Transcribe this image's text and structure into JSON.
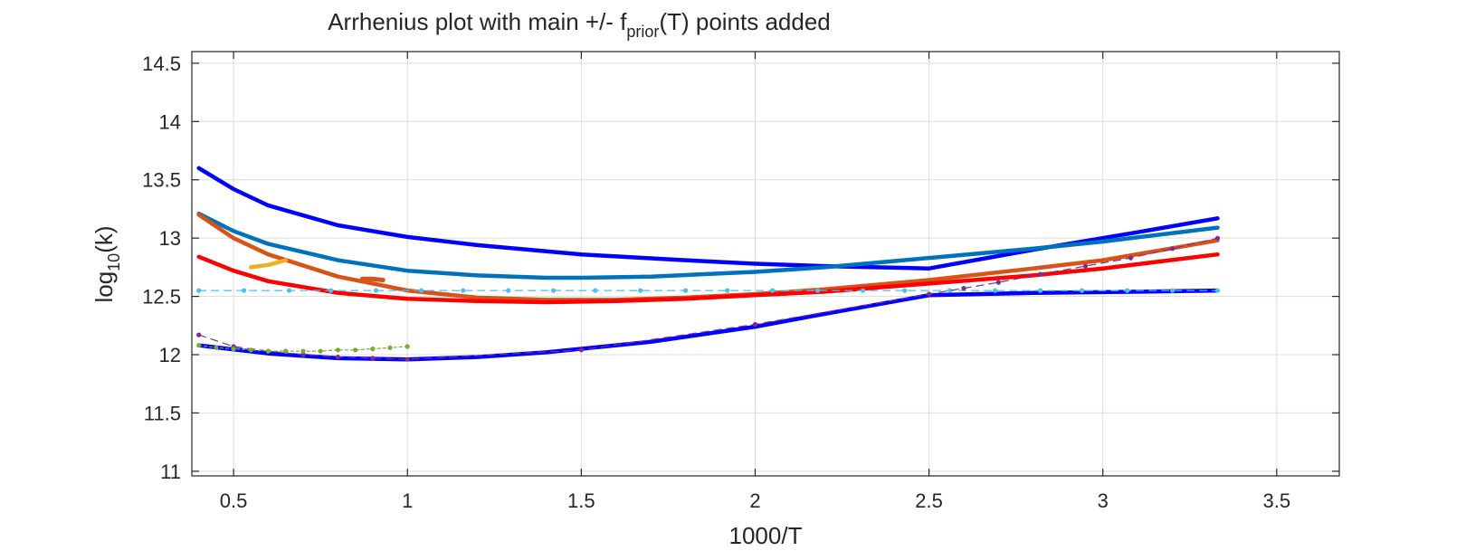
{
  "chart_data": {
    "type": "line",
    "title_parts": {
      "main": "Arrhenius plot with main +/- f",
      "subscript": "prior",
      "suffix": "(T) points added"
    },
    "xlabel": "1000/T",
    "ylabel_parts": {
      "main": "log",
      "subscript": "10",
      "suffix": "(k)"
    },
    "xlim": [
      0.38,
      3.68
    ],
    "ylim": [
      10.96,
      14.6
    ],
    "xticks": [
      0.5,
      1,
      1.5,
      2,
      2.5,
      3,
      3.5
    ],
    "xtick_labels": [
      "0.5",
      "1",
      "1.5",
      "2",
      "2.5",
      "3",
      "3.5"
    ],
    "yticks": [
      11,
      11.5,
      12,
      12.5,
      13,
      13.5,
      14,
      14.5
    ],
    "ytick_labels": [
      "11",
      "11.5",
      "12",
      "12.5",
      "13",
      "13.5",
      "14",
      "14.5"
    ],
    "grid": true,
    "series": [
      {
        "color": "#0000ff",
        "width": 4.5,
        "x": [
          0.4,
          0.5,
          0.6,
          0.8,
          1.0,
          1.2,
          1.5,
          1.8,
          2.0,
          2.2,
          2.5
        ],
        "y": [
          13.6,
          13.42,
          13.28,
          13.11,
          13.01,
          12.94,
          12.86,
          12.81,
          12.78,
          12.76,
          12.74
        ]
      },
      {
        "color": "#0000ff",
        "width": 4.5,
        "x": [
          2.5,
          2.8,
          3.1,
          3.33
        ],
        "y": [
          12.74,
          12.9,
          13.05,
          13.17
        ]
      },
      {
        "color": "#0072bd",
        "width": 4.5,
        "x": [
          0.4,
          0.5,
          0.6,
          0.8,
          1.0,
          1.2,
          1.4,
          1.5,
          1.7,
          2.0,
          2.2,
          2.5,
          2.8,
          3.0,
          3.33
        ],
        "y": [
          13.21,
          13.06,
          12.95,
          12.81,
          12.72,
          12.68,
          12.66,
          12.66,
          12.67,
          12.71,
          12.75,
          12.83,
          12.91,
          12.97,
          13.09
        ]
      },
      {
        "color": "#d95319",
        "width": 4.5,
        "x": [
          0.4,
          0.5,
          0.6,
          0.8,
          1.0,
          1.2,
          1.4,
          1.6,
          1.8,
          2.0,
          2.2,
          2.5,
          2.8,
          3.0,
          3.33
        ],
        "y": [
          13.2,
          13.0,
          12.86,
          12.67,
          12.55,
          12.49,
          12.47,
          12.47,
          12.49,
          12.52,
          12.56,
          12.64,
          12.74,
          12.81,
          12.98
        ]
      },
      {
        "color": "#ff0000",
        "width": 4.5,
        "x": [
          0.4,
          0.5,
          0.6,
          0.8,
          1.0,
          1.2,
          1.4,
          1.6,
          1.8,
          2.0,
          2.2,
          2.5,
          2.8,
          3.0,
          3.33
        ],
        "y": [
          12.84,
          12.72,
          12.63,
          12.53,
          12.48,
          12.46,
          12.45,
          12.46,
          12.48,
          12.51,
          12.54,
          12.61,
          12.68,
          12.74,
          12.86
        ]
      },
      {
        "color": "#0000ff",
        "width": 4.5,
        "x": [
          0.4,
          0.6,
          0.8,
          1.0,
          1.2,
          1.4,
          1.7,
          2.0,
          2.2,
          2.5
        ],
        "y": [
          12.08,
          12.01,
          11.97,
          11.96,
          11.98,
          12.02,
          12.11,
          12.24,
          12.35,
          12.51
        ]
      },
      {
        "color": "#0000ff",
        "width": 4.5,
        "x": [
          2.5,
          2.8,
          3.1,
          3.33
        ],
        "y": [
          12.51,
          12.53,
          12.54,
          12.55
        ]
      },
      {
        "color": "#edb120",
        "width": 4.5,
        "x": [
          0.55,
          0.6,
          0.65
        ],
        "y": [
          12.75,
          12.77,
          12.81
        ]
      },
      {
        "color": "#d95319",
        "width": 5,
        "x": [
          0.87,
          0.9,
          0.93
        ],
        "y": [
          12.65,
          12.65,
          12.64
        ]
      },
      {
        "color": "#4dbeee",
        "width": 1.2,
        "dash": "8,6",
        "markers": true,
        "x": [
          0.4,
          0.53,
          0.66,
          0.78,
          0.91,
          1.04,
          1.16,
          1.29,
          1.42,
          1.54,
          1.67,
          1.8,
          1.92,
          2.05,
          2.18,
          2.31,
          2.43,
          2.56,
          2.69,
          2.82,
          2.94,
          3.07,
          3.2,
          3.33
        ],
        "y": [
          12.55,
          12.55,
          12.55,
          12.55,
          12.55,
          12.55,
          12.55,
          12.55,
          12.55,
          12.55,
          12.55,
          12.55,
          12.55,
          12.55,
          12.55,
          12.55,
          12.55,
          12.55,
          12.55,
          12.55,
          12.55,
          12.55,
          12.55,
          12.55
        ]
      },
      {
        "color": "#7e2f8e",
        "width": 1.2,
        "dash": "8,6",
        "markers": true,
        "x": [
          0.4,
          0.5,
          0.6,
          0.7,
          0.8,
          0.9,
          1.0,
          1.5,
          2.0,
          2.5,
          2.6,
          2.7,
          2.82,
          2.95,
          3.08,
          3.2,
          3.33
        ],
        "y": [
          12.17,
          12.07,
          12.03,
          12.0,
          11.98,
          11.97,
          11.96,
          12.04,
          12.26,
          12.52,
          12.57,
          12.62,
          12.69,
          12.76,
          12.83,
          12.91,
          13.0
        ]
      },
      {
        "color": "#77ac30",
        "width": 1.2,
        "dash": "3,3",
        "markers": true,
        "x": [
          0.4,
          0.45,
          0.5,
          0.55,
          0.6,
          0.65,
          0.7,
          0.75,
          0.8,
          0.85,
          0.9,
          0.95,
          1.0
        ],
        "y": [
          12.08,
          12.06,
          12.05,
          12.04,
          12.03,
          12.03,
          12.03,
          12.03,
          12.04,
          12.04,
          12.05,
          12.06,
          12.07
        ]
      }
    ]
  }
}
